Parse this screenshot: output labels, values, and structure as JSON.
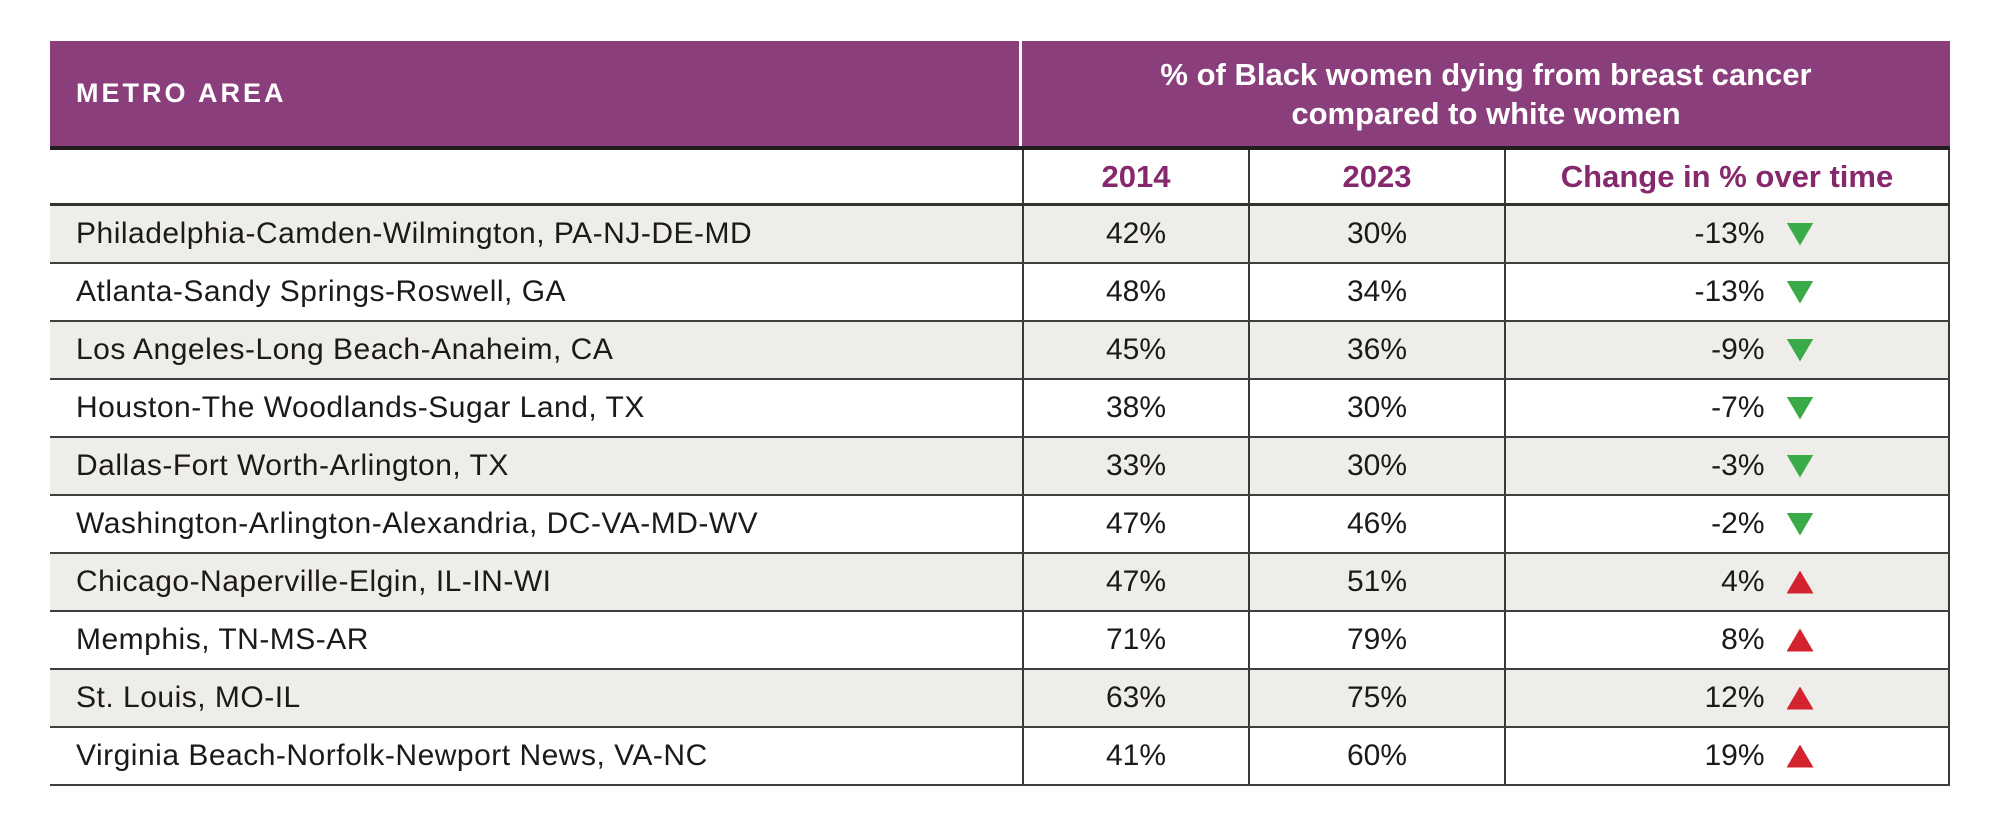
{
  "colors": {
    "header_bg": "#8a3e7c",
    "subheader_text": "#86286d",
    "triangle_down_green": "#3aaa49",
    "triangle_up_red": "#d2232e",
    "row_alt_bg": "#efedea",
    "body_text": "#1c1a19",
    "border": "#3b3937"
  },
  "table": {
    "header": {
      "metro_label": "METRO AREA",
      "title_line1": "% of Black women dying from breast cancer",
      "title_line2": "compared to white women"
    },
    "subheader": {
      "year1": "2014",
      "year2": "2023",
      "change": "Change in % over time"
    },
    "rows": [
      {
        "metro": "Philadelphia-Camden-Wilmington, PA-NJ-DE-MD",
        "y2014": "42%",
        "y2023": "30%",
        "change": "-13%",
        "direction": "down"
      },
      {
        "metro": "Atlanta-Sandy Springs-Roswell, GA",
        "y2014": "48%",
        "y2023": "34%",
        "change": "-13%",
        "direction": "down"
      },
      {
        "metro": "Los Angeles-Long Beach-Anaheim, CA",
        "y2014": "45%",
        "y2023": "36%",
        "change": "-9%",
        "direction": "down"
      },
      {
        "metro": "Houston-The Woodlands-Sugar Land, TX",
        "y2014": "38%",
        "y2023": "30%",
        "change": "-7%",
        "direction": "down"
      },
      {
        "metro": "Dallas-Fort Worth-Arlington, TX",
        "y2014": "33%",
        "y2023": "30%",
        "change": "-3%",
        "direction": "down"
      },
      {
        "metro": "Washington-Arlington-Alexandria, DC-VA-MD-WV",
        "y2014": "47%",
        "y2023": "46%",
        "change": "-2%",
        "direction": "down"
      },
      {
        "metro": "Chicago-Naperville-Elgin, IL-IN-WI",
        "y2014": "47%",
        "y2023": "51%",
        "change": "4%",
        "direction": "up"
      },
      {
        "metro": "Memphis, TN-MS-AR",
        "y2014": "71%",
        "y2023": "79%",
        "change": "8%",
        "direction": "up"
      },
      {
        "metro": "St. Louis, MO-IL",
        "y2014": "63%",
        "y2023": "75%",
        "change": "12%",
        "direction": "up"
      },
      {
        "metro": "Virginia Beach-Norfolk-Newport News, VA-NC",
        "y2014": "41%",
        "y2023": "60%",
        "change": "19%",
        "direction": "up"
      }
    ]
  },
  "chart_data": {
    "type": "table",
    "title": "% of Black women dying from breast cancer compared to white women",
    "columns": [
      "METRO AREA",
      "2014",
      "2023",
      "Change in % over time"
    ],
    "units": "percent",
    "rows": [
      [
        "Philadelphia-Camden-Wilmington, PA-NJ-DE-MD",
        42,
        30,
        -13
      ],
      [
        "Atlanta-Sandy Springs-Roswell, GA",
        48,
        34,
        -13
      ],
      [
        "Los Angeles-Long Beach-Anaheim, CA",
        45,
        36,
        -9
      ],
      [
        "Houston-The Woodlands-Sugar Land, TX",
        38,
        30,
        -7
      ],
      [
        "Dallas-Fort Worth-Arlington, TX",
        33,
        30,
        -3
      ],
      [
        "Washington-Arlington-Alexandria, DC-VA-MD-WV",
        47,
        46,
        -2
      ],
      [
        "Chicago-Naperville-Elgin, IL-IN-WI",
        47,
        51,
        4
      ],
      [
        "Memphis, TN-MS-AR",
        71,
        79,
        8
      ],
      [
        "St. Louis, MO-IL",
        63,
        75,
        12
      ],
      [
        "Virginia Beach-Norfolk-Newport News, VA-NC",
        41,
        60,
        19
      ]
    ]
  }
}
